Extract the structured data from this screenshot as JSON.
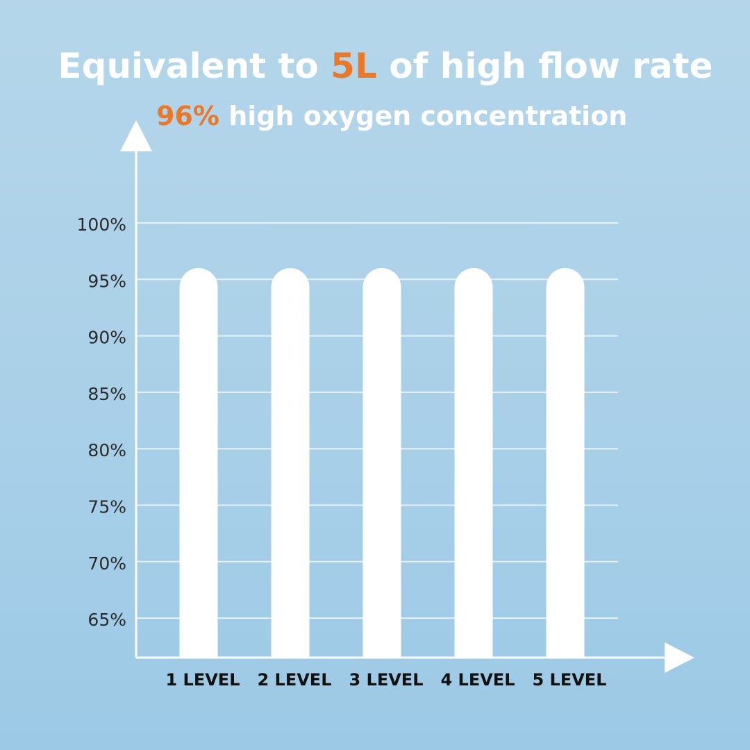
{
  "header": {
    "title_prefix": "Equivalent to ",
    "title_highlight": "5L",
    "title_suffix": " of high flow rate",
    "subtitle_highlight": "96%",
    "subtitle_suffix": " high oxygen concentration"
  },
  "colors": {
    "accent": "#e8792b",
    "bar": "#ffffff",
    "grid": "#e6f1f8",
    "axis": "#ffffff",
    "tick_text": "#2b2b2b",
    "category_text": "#111111"
  },
  "chart_data": {
    "type": "bar",
    "categories": [
      "1 LEVEL",
      "2 LEVEL",
      "3 LEVEL",
      "4 LEVEL",
      "5 LEVEL"
    ],
    "values": [
      96,
      96,
      96,
      96,
      96
    ],
    "ylim": [
      61.5,
      100
    ],
    "yticks": [
      "100%",
      "95%",
      "90%",
      "85%",
      "80%",
      "75%",
      "70%",
      "65%"
    ],
    "ytick_values": [
      100,
      95,
      90,
      85,
      80,
      75,
      70,
      65
    ],
    "grid": true
  }
}
